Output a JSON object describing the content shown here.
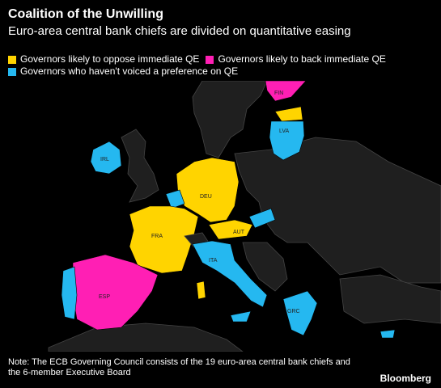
{
  "title": "Coalition of the Unwilling",
  "subtitle": "Euro-area central bank chiefs are divided on quantitative easing",
  "legend": [
    {
      "label": "Governors likely to oppose immediate QE",
      "color": "#ffd400"
    },
    {
      "label": "Governors likely to back immediate QE",
      "color": "#ff1fb4"
    },
    {
      "label": "Governors who haven't voiced a preference on QE",
      "color": "#25b8f0"
    }
  ],
  "country_labels": {
    "fin": "FIN",
    "lva": "LVA",
    "irl": "IRL",
    "deu": "DEU",
    "fra": "FRA",
    "aut": "AUT",
    "ita": "ITA",
    "esp": "ESP",
    "grc": "GRC"
  },
  "colors": {
    "oppose": "#ffd400",
    "back": "#ff1fb4",
    "none": "#25b8f0",
    "land": "#1f1f1f",
    "border": "#444444"
  },
  "note": "Note: The ECB Governing Council consists of the 19 euro-area central bank chiefs and the 6-member Executive Board",
  "brand": "Bloomberg"
}
